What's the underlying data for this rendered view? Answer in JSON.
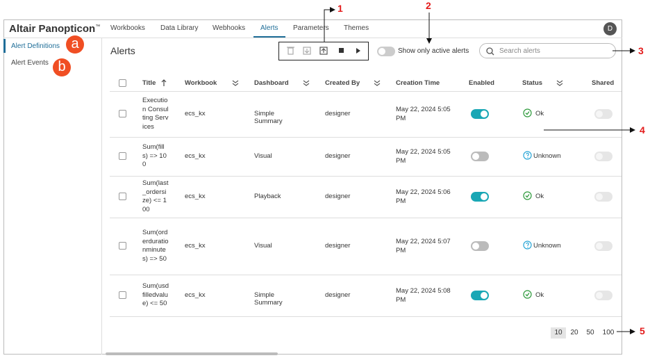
{
  "header": {
    "brand": "Altair Panopticon",
    "brand_mark": "™",
    "tabs": [
      "Workbooks",
      "Data Library",
      "Webhooks",
      "Alerts",
      "Parameters",
      "Themes"
    ],
    "active_tab": 3,
    "avatar": "D"
  },
  "sidebar": {
    "items": [
      "Alert Definitions",
      "Alert Events"
    ],
    "active_item": 0
  },
  "callouts": {
    "a": "a",
    "b": "b",
    "1": "1",
    "2": "2",
    "3": "3",
    "4": "4",
    "5": "5"
  },
  "content": {
    "title": "Alerts",
    "active_toggle_label": "Show only active alerts",
    "search_placeholder": "Search alerts"
  },
  "table": {
    "headers": [
      "Title",
      "Workbook",
      "Dashboard",
      "Created By",
      "Creation Time",
      "Enabled",
      "Status",
      "Shared"
    ],
    "rows": [
      {
        "title": "Execution Consulting Services",
        "workbook": "ecs_kx",
        "dashboard": "Simple Summary",
        "created_by": "designer",
        "creation_time": "May 22, 2024 5:05 PM",
        "enabled": true,
        "status": "Ok",
        "shared": false
      },
      {
        "title": "Sum(fills) => 100",
        "workbook": "ecs_kx",
        "dashboard": "Visual",
        "created_by": "designer",
        "creation_time": "May 22, 2024 5:05 PM",
        "enabled": false,
        "status": "Unknown",
        "shared": false
      },
      {
        "title": "Sum(last_ordersize) <= 100",
        "workbook": "ecs_kx",
        "dashboard": "Playback",
        "created_by": "designer",
        "creation_time": "May 22, 2024 5:06 PM",
        "enabled": true,
        "status": "Ok",
        "shared": false
      },
      {
        "title": "Sum(orderdurationminutes) => 50",
        "workbook": "ecs_kx",
        "dashboard": "Visual",
        "created_by": "designer",
        "creation_time": "May 22, 2024 5:07 PM",
        "enabled": false,
        "status": "Unknown",
        "shared": false
      },
      {
        "title": "Sum(usdfilledvalue) <= 50",
        "workbook": "ecs_kx",
        "dashboard": "Simple Summary",
        "created_by": "designer",
        "creation_time": "May 22, 2024 5:08 PM",
        "enabled": true,
        "status": "Ok",
        "shared": false
      }
    ]
  },
  "pagination": {
    "sizes": [
      "10",
      "20",
      "50",
      "100"
    ],
    "active_size": 0
  }
}
